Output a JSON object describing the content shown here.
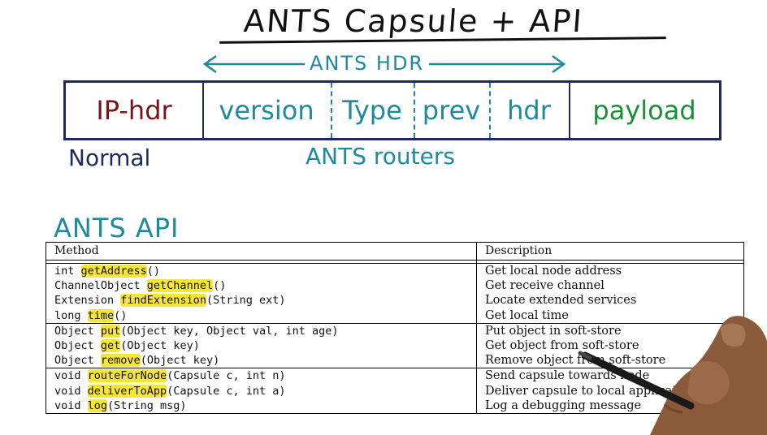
{
  "title": "ANTS Capsule + API",
  "header_label": "ANTS HDR",
  "packet": {
    "ip": "IP-hdr",
    "version": "version",
    "type": "Type",
    "prev": "prev",
    "hdr": "hdr",
    "payload": "payload"
  },
  "normal_label": "Normal",
  "routers_label": "ANTS routers",
  "api_title": "ANTS API",
  "table": {
    "col_method": "Method",
    "col_description": "Description",
    "groups": [
      [
        {
          "pre": "int ",
          "name": "getAddress",
          "post": "()",
          "desc": "Get local node address"
        },
        {
          "pre": "ChannelObject ",
          "name": "getChannel",
          "post": "()",
          "desc": "Get receive channel"
        },
        {
          "pre": "Extension ",
          "name": "findExtension",
          "post": "(String ext)",
          "desc": "Locate extended services"
        },
        {
          "pre": "long ",
          "name": "time",
          "post": "()",
          "desc": "Get local time"
        }
      ],
      [
        {
          "pre": "Object ",
          "name": "put",
          "post": "(Object key, Object val, int age)",
          "desc": "Put object in soft-store"
        },
        {
          "pre": "Object ",
          "name": "get",
          "post": "(Object key)",
          "desc": "Get object from soft-store"
        },
        {
          "pre": "Object ",
          "name": "remove",
          "post": "(Object key)",
          "desc": "Remove object from soft-store"
        }
      ],
      [
        {
          "pre": "void ",
          "name": "routeForNode",
          "post": "(Capsule c, int n)",
          "desc": "Send capsule towards node"
        },
        {
          "pre": "void ",
          "name": "deliverToApp",
          "post": "(Capsule c, int a)",
          "desc": "Deliver capsule to local application"
        },
        {
          "pre": "void ",
          "name": "log",
          "post": "(String msg)",
          "desc": "Log a debugging message"
        }
      ]
    ]
  },
  "colors": {
    "teal": "#1e8a9e",
    "navy": "#1f2a5c",
    "maroon": "#7a1418",
    "green": "#1a8f3a",
    "highlight": "#f6e63a"
  }
}
